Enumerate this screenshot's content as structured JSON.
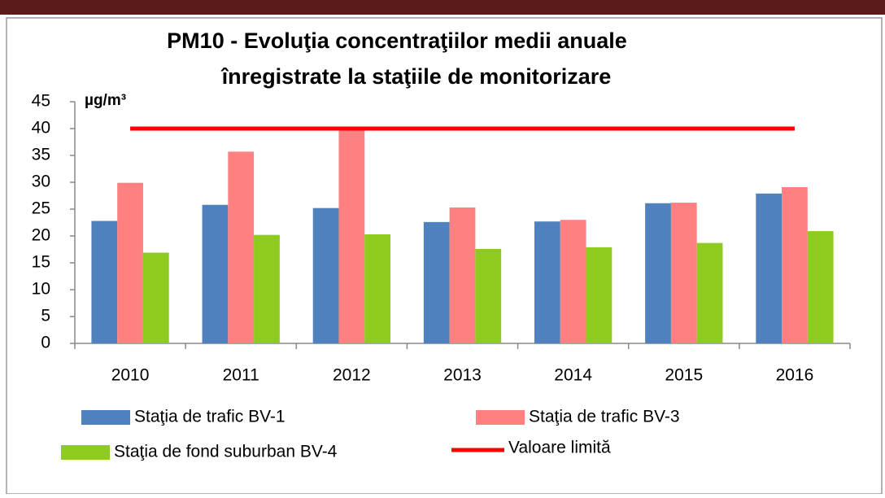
{
  "chart_data": {
    "type": "bar",
    "title": [
      "PM10 -  Evoluţia concentraţiilor medii anuale",
      "înregistrate la staţiile de monitorizare"
    ],
    "ylabel": "µg/m³",
    "categories": [
      "2010",
      "2011",
      "2012",
      "2013",
      "2014",
      "2015",
      "2016"
    ],
    "series": [
      {
        "name": "Staţia de trafic BV-1",
        "color": "#4f81bd",
        "values": [
          22.8,
          25.8,
          25.2,
          22.6,
          22.7,
          26.1,
          27.9
        ]
      },
      {
        "name": "Staţia de trafic BV-3",
        "color": "#ff8080",
        "values": [
          29.9,
          35.7,
          39.9,
          25.3,
          23.0,
          26.2,
          29.1
        ]
      },
      {
        "name": "Staţia de fond suburban BV-4",
        "color": "#8ecb1f",
        "values": [
          16.9,
          20.2,
          20.3,
          17.6,
          17.9,
          18.7,
          20.9
        ]
      },
      {
        "name": "Valoare limită",
        "color": "#ff0000",
        "type": "line",
        "values": [
          40,
          40,
          40,
          40,
          40,
          40,
          40
        ]
      }
    ],
    "ylim": [
      0,
      45
    ],
    "yticks": [
      0,
      5,
      10,
      15,
      20,
      25,
      30,
      35,
      40,
      45
    ],
    "grid": false
  }
}
